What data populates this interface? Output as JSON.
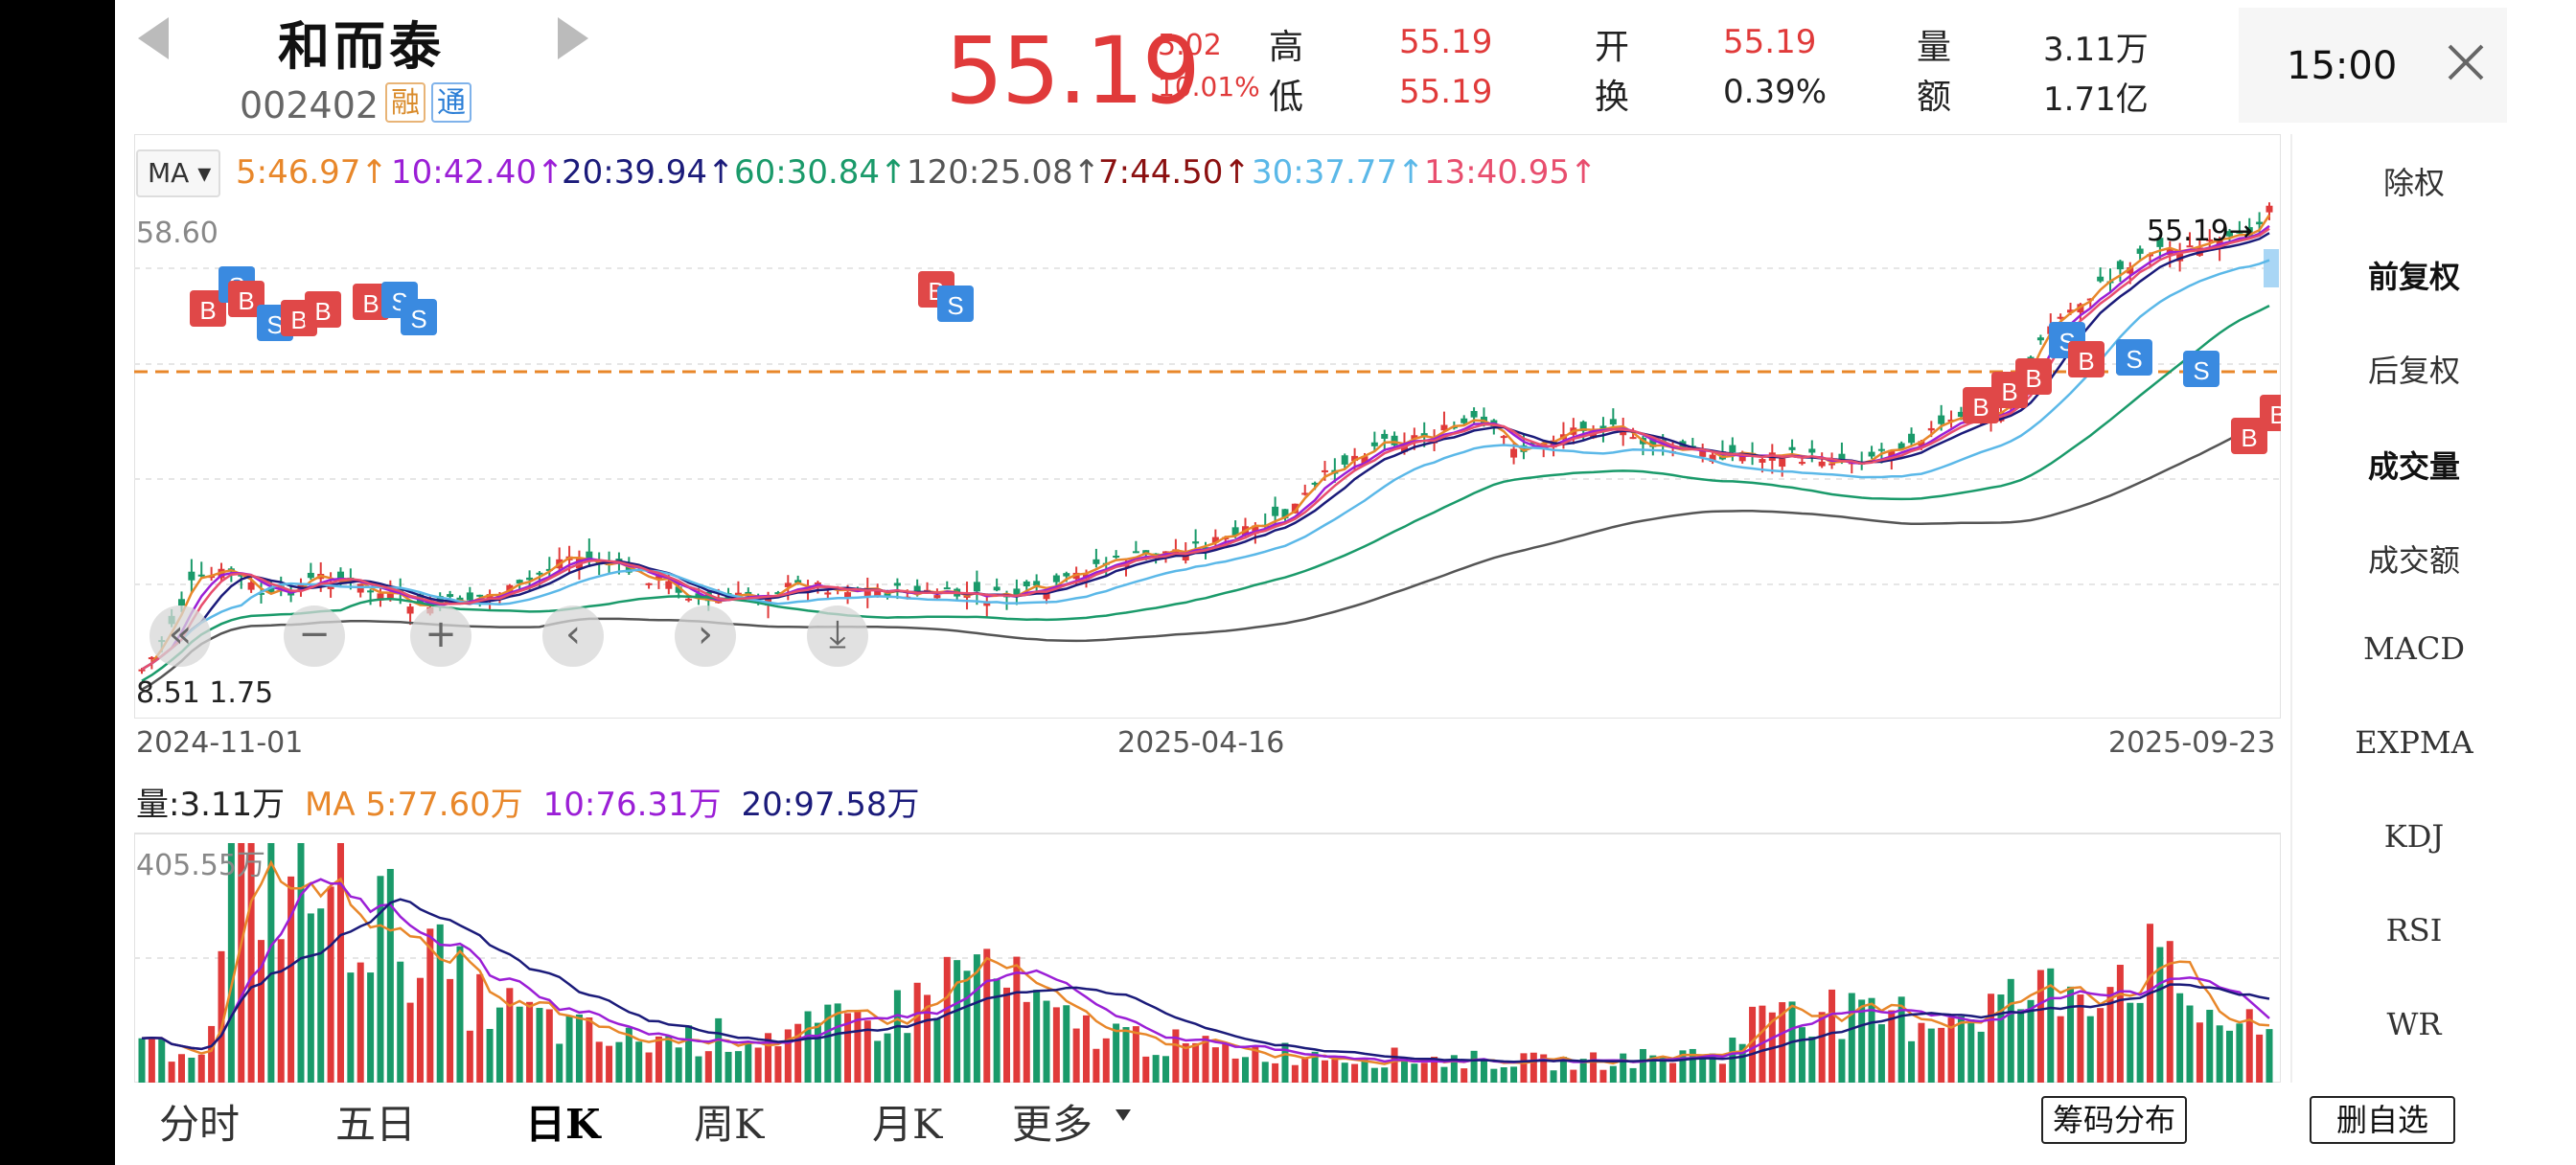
{
  "header": {
    "name": "和而泰",
    "code": "002402",
    "tag_rong": "融",
    "tag_tong": "通",
    "price": "55.19",
    "change": "5.02",
    "change_pct": "10.01%",
    "labels": {
      "high": "高",
      "low": "低",
      "open": "开",
      "turnover": "换",
      "volume": "量",
      "amount": "额"
    },
    "high": "55.19",
    "low": "55.19",
    "open": "55.19",
    "turnover": "0.39%",
    "volume": "3.11万",
    "amount": "1.71亿",
    "time": "15:00"
  },
  "ma_legend": {
    "selector": "MA",
    "items": [
      {
        "text": "5:46.97↑",
        "color": "#e8872a"
      },
      {
        "text": "10:42.40↑",
        "color": "#9b1fd6"
      },
      {
        "text": "20:39.94↑",
        "color": "#1b1b7a"
      },
      {
        "text": "60:30.84↑",
        "color": "#1a9a6a"
      },
      {
        "text": "120:25.08↑",
        "color": "#555555"
      },
      {
        "text": "7:44.50↑",
        "color": "#8b1010"
      },
      {
        "text": "30:37.77↑",
        "color": "#5bb8e8"
      },
      {
        "text": "13:40.95↑",
        "color": "#e84e6e"
      }
    ]
  },
  "kline": {
    "price_max": "58.60",
    "price_min_label": "8.51 1.75",
    "last_price_tag": "55.19→",
    "dates": [
      "2024-11-01",
      "2025-04-16",
      "2025-09-23"
    ]
  },
  "volume": {
    "label": "量:3.11万",
    "ma5": "MA 5:77.60万",
    "ma10": "10:76.31万",
    "ma20": "20:97.58万",
    "max": "405.55万",
    "colors": {
      "ma5": "#e8872a",
      "ma10": "#9b1fd6",
      "ma20": "#1b1b7a"
    }
  },
  "side_panel": [
    "除权",
    "前复权",
    "后复权",
    "成交量",
    "成交额",
    "MACD",
    "EXPMA",
    "KDJ",
    "RSI",
    "WR"
  ],
  "bottom_tabs": [
    "分时",
    "五日",
    "日K",
    "周K",
    "月K",
    "更多"
  ],
  "buttons": {
    "chip": "筹码分布",
    "remove": "删自选"
  },
  "zoom": {
    "back": "«",
    "zoom_out": "−",
    "zoom_in": "+",
    "prev": "‹",
    "next": "›",
    "reset": "⤓"
  },
  "colors": {
    "up": "#e03a3a",
    "down": "#1a9a6a",
    "buy_marker": "#e04848",
    "sell_marker": "#3a8ae0"
  }
}
